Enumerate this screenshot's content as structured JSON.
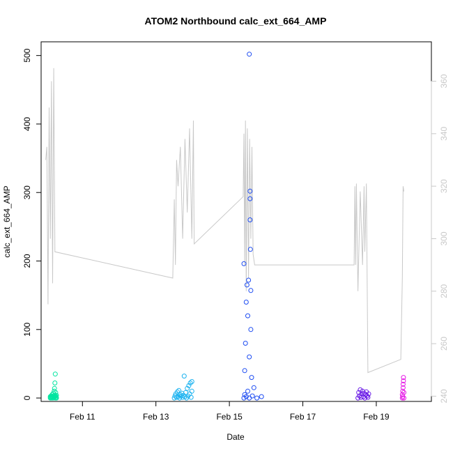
{
  "chart_data": {
    "type": "scatter",
    "title": "ATOM2 Northbound calc_ext_664_AMP",
    "xlabel": "Date",
    "ylabel": "calc_ext_664_AMP",
    "x_axis": {
      "type": "date",
      "range": [
        "Feb 09 21:00",
        "Feb 20 12:00"
      ],
      "ticks": [
        "Feb 11",
        "Feb 13",
        "Feb 15",
        "Feb 17",
        "Feb 19"
      ]
    },
    "y_axis": {
      "range": [
        -5,
        520
      ],
      "ticks": [
        0,
        100,
        200,
        300,
        400,
        500
      ]
    },
    "y2_axis": {
      "range": [
        238,
        375
      ],
      "ticks": [
        240,
        260,
        280,
        300,
        320,
        340,
        360
      ],
      "color": "#c8c8c8"
    },
    "grid": false,
    "legend": "none",
    "series": [
      {
        "kind": "points",
        "color": "#00e5a0",
        "points": [
          {
            "x": "Feb 10 03:00",
            "y": 0
          },
          {
            "x": "Feb 10 03:00",
            "y": 2
          },
          {
            "x": "Feb 10 03:15",
            "y": 1
          },
          {
            "x": "Feb 10 03:30",
            "y": 3
          },
          {
            "x": "Feb 10 03:45",
            "y": 0
          },
          {
            "x": "Feb 10 04:00",
            "y": 2
          },
          {
            "x": "Feb 10 04:15",
            "y": 5
          },
          {
            "x": "Feb 10 04:30",
            "y": 1
          },
          {
            "x": "Feb 10 04:45",
            "y": 0
          },
          {
            "x": "Feb 10 05:00",
            "y": 3
          },
          {
            "x": "Feb 10 05:00",
            "y": 7
          },
          {
            "x": "Feb 10 05:15",
            "y": 2
          },
          {
            "x": "Feb 10 05:30",
            "y": 10
          },
          {
            "x": "Feb 10 05:30",
            "y": 1
          },
          {
            "x": "Feb 10 05:45",
            "y": 14
          },
          {
            "x": "Feb 10 05:45",
            "y": 4
          },
          {
            "x": "Feb 10 06:00",
            "y": 22
          },
          {
            "x": "Feb 10 06:00",
            "y": 2
          },
          {
            "x": "Feb 10 06:15",
            "y": 35
          },
          {
            "x": "Feb 10 06:15",
            "y": 0
          },
          {
            "x": "Feb 10 06:30",
            "y": 8
          },
          {
            "x": "Feb 10 06:30",
            "y": 3
          },
          {
            "x": "Feb 10 06:45",
            "y": 1
          },
          {
            "x": "Feb 10 07:00",
            "y": 4
          },
          {
            "x": "Feb 10 07:00",
            "y": 0
          }
        ]
      },
      {
        "kind": "points",
        "color": "#1ab2f0",
        "points": [
          {
            "x": "Feb 13 12:00",
            "y": 0
          },
          {
            "x": "Feb 13 12:30",
            "y": 3
          },
          {
            "x": "Feb 13 13:00",
            "y": 6
          },
          {
            "x": "Feb 13 13:30",
            "y": 1
          },
          {
            "x": "Feb 13 14:00",
            "y": 9
          },
          {
            "x": "Feb 13 14:30",
            "y": 2
          },
          {
            "x": "Feb 13 15:00",
            "y": 11
          },
          {
            "x": "Feb 13 15:30",
            "y": 0
          },
          {
            "x": "Feb 13 16:00",
            "y": 5
          },
          {
            "x": "Feb 13 16:30",
            "y": 3
          },
          {
            "x": "Feb 13 17:00",
            "y": 7
          },
          {
            "x": "Feb 13 17:30",
            "y": 1
          },
          {
            "x": "Feb 13 18:00",
            "y": 4
          },
          {
            "x": "Feb 13 18:30",
            "y": 32
          },
          {
            "x": "Feb 13 19:00",
            "y": 2
          },
          {
            "x": "Feb 13 19:30",
            "y": 8
          },
          {
            "x": "Feb 13 20:00",
            "y": 0
          },
          {
            "x": "Feb 13 20:30",
            "y": 14
          },
          {
            "x": "Feb 13 21:00",
            "y": 3
          },
          {
            "x": "Feb 13 21:30",
            "y": 18
          },
          {
            "x": "Feb 13 22:00",
            "y": 6
          },
          {
            "x": "Feb 13 22:30",
            "y": 22
          },
          {
            "x": "Feb 13 23:00",
            "y": 1
          },
          {
            "x": "Feb 13 23:30",
            "y": 10
          },
          {
            "x": "Feb 13 23:30",
            "y": 24
          }
        ]
      },
      {
        "kind": "points",
        "color": "#1d4cf2",
        "points": [
          {
            "x": "Feb 15 09:30",
            "y": 0
          },
          {
            "x": "Feb 15 09:30",
            "y": 196
          },
          {
            "x": "Feb 15 10:00",
            "y": 5
          },
          {
            "x": "Feb 15 10:00",
            "y": 40
          },
          {
            "x": "Feb 15 10:30",
            "y": 80
          },
          {
            "x": "Feb 15 11:00",
            "y": 140
          },
          {
            "x": "Feb 15 11:00",
            "y": 2
          },
          {
            "x": "Feb 15 11:30",
            "y": 165
          },
          {
            "x": "Feb 15 12:00",
            "y": 120
          },
          {
            "x": "Feb 15 12:00",
            "y": 10
          },
          {
            "x": "Feb 15 12:30",
            "y": 172
          },
          {
            "x": "Feb 15 13:00",
            "y": 502
          },
          {
            "x": "Feb 15 13:00",
            "y": 60
          },
          {
            "x": "Feb 15 13:00",
            "y": 0
          },
          {
            "x": "Feb 15 13:30",
            "y": 302
          },
          {
            "x": "Feb 15 13:30",
            "y": 291
          },
          {
            "x": "Feb 15 13:30",
            "y": 260
          },
          {
            "x": "Feb 15 13:45",
            "y": 217
          },
          {
            "x": "Feb 15 14:00",
            "y": 157
          },
          {
            "x": "Feb 15 14:00",
            "y": 100
          },
          {
            "x": "Feb 15 14:30",
            "y": 30
          },
          {
            "x": "Feb 15 15:00",
            "y": 3
          },
          {
            "x": "Feb 15 16:00",
            "y": 15
          },
          {
            "x": "Feb 15 18:00",
            "y": 0
          },
          {
            "x": "Feb 15 21:00",
            "y": 2
          }
        ]
      },
      {
        "kind": "points",
        "color": "#6a1be6",
        "points": [
          {
            "x": "Feb 18 12:00",
            "y": 0
          },
          {
            "x": "Feb 18 12:30",
            "y": 8
          },
          {
            "x": "Feb 18 13:00",
            "y": 3
          },
          {
            "x": "Feb 18 13:30",
            "y": 12
          },
          {
            "x": "Feb 18 14:00",
            "y": 1
          },
          {
            "x": "Feb 18 14:30",
            "y": 6
          },
          {
            "x": "Feb 18 15:00",
            "y": 10
          },
          {
            "x": "Feb 18 15:30",
            "y": 2
          },
          {
            "x": "Feb 18 16:00",
            "y": 7
          },
          {
            "x": "Feb 18 16:30",
            "y": 0
          },
          {
            "x": "Feb 18 17:00",
            "y": 5
          },
          {
            "x": "Feb 18 17:30",
            "y": 9
          },
          {
            "x": "Feb 18 18:00",
            "y": 3
          },
          {
            "x": "Feb 18 18:30",
            "y": 1
          },
          {
            "x": "Feb 18 19:00",
            "y": 6
          }
        ]
      },
      {
        "kind": "points",
        "color": "#e61ae6",
        "points": [
          {
            "x": "Feb 19 17:00",
            "y": 0
          },
          {
            "x": "Feb 19 17:00",
            "y": 5
          },
          {
            "x": "Feb 19 17:15",
            "y": 10
          },
          {
            "x": "Feb 19 17:15",
            "y": 2
          },
          {
            "x": "Feb 19 17:30",
            "y": 15
          },
          {
            "x": "Feb 19 17:30",
            "y": 20
          },
          {
            "x": "Feb 19 17:45",
            "y": 25
          },
          {
            "x": "Feb 19 17:45",
            "y": 30
          },
          {
            "x": "Feb 19 18:00",
            "y": 8
          },
          {
            "x": "Feb 19 18:00",
            "y": 0
          }
        ]
      },
      {
        "kind": "line",
        "axis": "right",
        "color": "#c8c8c8",
        "points": [
          {
            "x": "Feb 10 00:00",
            "y": 330
          },
          {
            "x": "Feb 10 00:45",
            "y": 335
          },
          {
            "x": "Feb 10 01:30",
            "y": 275
          },
          {
            "x": "Feb 10 02:15",
            "y": 350
          },
          {
            "x": "Feb 10 03:00",
            "y": 300
          },
          {
            "x": "Feb 10 03:45",
            "y": 360
          },
          {
            "x": "Feb 10 04:30",
            "y": 283
          },
          {
            "x": "Feb 10 05:15",
            "y": 365
          },
          {
            "x": "Feb 10 06:00",
            "y": 295
          },
          {
            "x": "Feb 13 11:00",
            "y": 285
          },
          {
            "x": "Feb 13 12:00",
            "y": 315
          },
          {
            "x": "Feb 13 12:45",
            "y": 290
          },
          {
            "x": "Feb 13 13:30",
            "y": 330
          },
          {
            "x": "Feb 13 14:30",
            "y": 320
          },
          {
            "x": "Feb 13 16:00",
            "y": 335
          },
          {
            "x": "Feb 13 17:30",
            "y": 300
          },
          {
            "x": "Feb 13 19:00",
            "y": 338
          },
          {
            "x": "Feb 13 20:30",
            "y": 310
          },
          {
            "x": "Feb 13 22:00",
            "y": 342
          },
          {
            "x": "Feb 13 23:30",
            "y": 300
          },
          {
            "x": "Feb 14 00:30",
            "y": 345
          },
          {
            "x": "Feb 14 01:00",
            "y": 298
          },
          {
            "x": "Feb 15 09:00",
            "y": 316
          },
          {
            "x": "Feb 15 09:30",
            "y": 340
          },
          {
            "x": "Feb 15 10:00",
            "y": 290
          },
          {
            "x": "Feb 15 10:30",
            "y": 345
          },
          {
            "x": "Feb 15 11:00",
            "y": 280
          },
          {
            "x": "Feb 15 11:45",
            "y": 342
          },
          {
            "x": "Feb 15 12:30",
            "y": 285
          },
          {
            "x": "Feb 15 13:15",
            "y": 338
          },
          {
            "x": "Feb 15 14:00",
            "y": 300
          },
          {
            "x": "Feb 15 14:45",
            "y": 335
          },
          {
            "x": "Feb 15 15:30",
            "y": 294
          },
          {
            "x": "Feb 15 16:30",
            "y": 290
          },
          {
            "x": "Feb 18 09:30",
            "y": 290
          },
          {
            "x": "Feb 18 10:00",
            "y": 320
          },
          {
            "x": "Feb 18 10:30",
            "y": 290
          },
          {
            "x": "Feb 18 11:00",
            "y": 321
          },
          {
            "x": "Feb 18 12:00",
            "y": 280
          },
          {
            "x": "Feb 18 13:30",
            "y": 318
          },
          {
            "x": "Feb 18 15:00",
            "y": 290
          },
          {
            "x": "Feb 18 16:00",
            "y": 320
          },
          {
            "x": "Feb 18 16:30",
            "y": 295
          },
          {
            "x": "Feb 18 17:30",
            "y": 321
          },
          {
            "x": "Feb 18 18:30",
            "y": 249
          },
          {
            "x": "Feb 19 16:00",
            "y": 254
          },
          {
            "x": "Feb 19 17:00",
            "y": 285
          },
          {
            "x": "Feb 19 17:30",
            "y": 320
          },
          {
            "x": "Feb 19 18:00",
            "y": 318
          }
        ]
      }
    ]
  }
}
